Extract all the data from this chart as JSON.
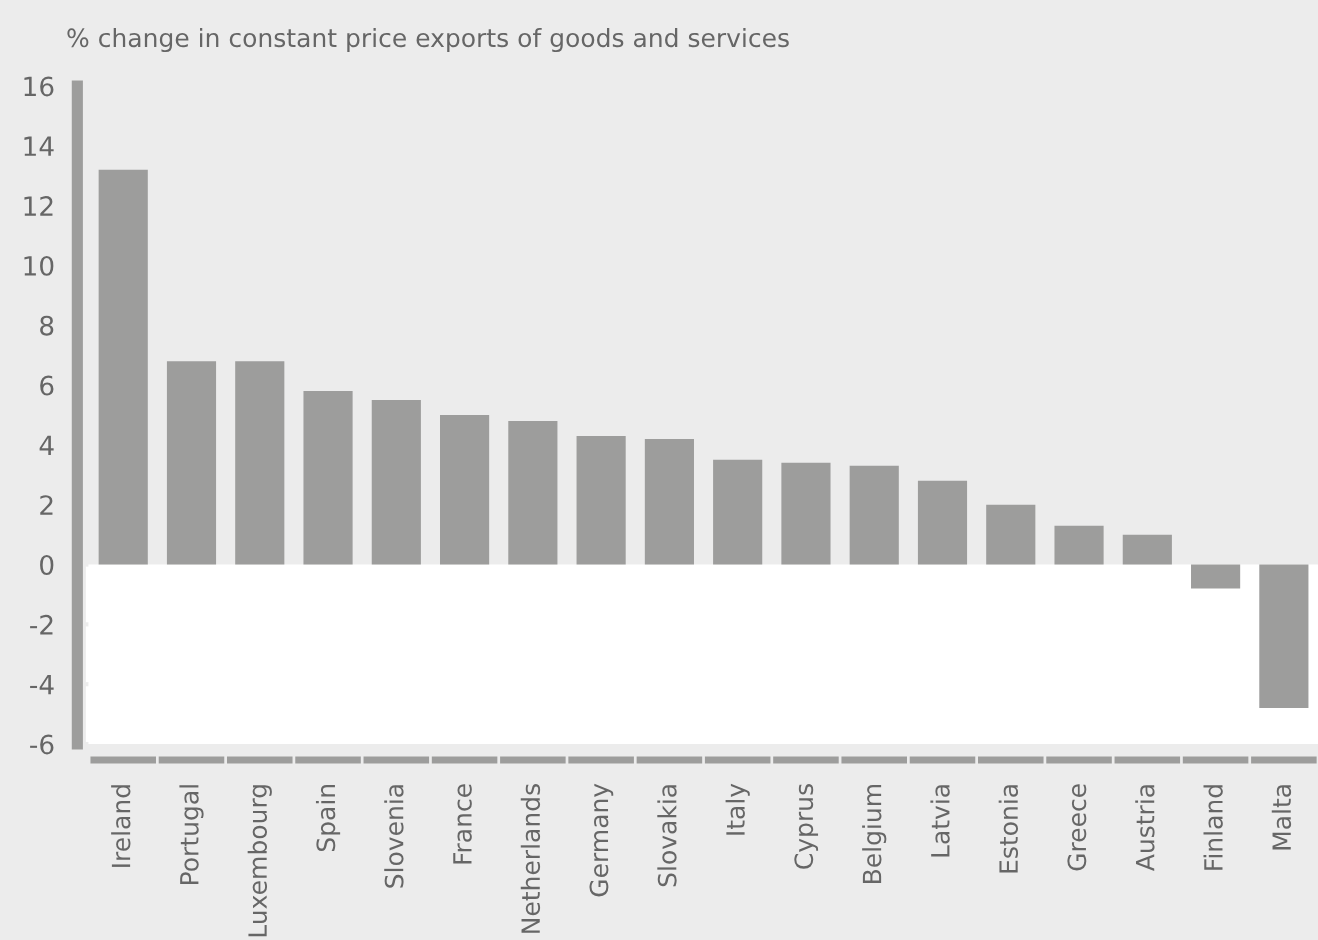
{
  "chart_data": {
    "type": "bar",
    "title": "% change in constant price exports of goods and services",
    "categories": [
      "Ireland",
      "Portugal",
      "Luxembourg",
      "Spain",
      "Slovenia",
      "France",
      "Netherlands",
      "Germany",
      "Slovakia",
      "Italy",
      "Cyprus",
      "Belgium",
      "Latvia",
      "Estonia",
      "Greece",
      "Austria",
      "Finland",
      "Malta"
    ],
    "values": [
      13.2,
      6.8,
      6.8,
      5.8,
      5.5,
      5.0,
      4.8,
      4.3,
      4.2,
      3.5,
      3.4,
      3.3,
      2.8,
      2.0,
      1.3,
      1.0,
      -0.8,
      -4.8
    ],
    "color": "#9d9d9c",
    "ylim": [
      -6,
      16
    ],
    "yticks": [
      -6,
      -4,
      -2,
      0,
      2,
      4,
      6,
      8,
      10,
      12,
      14,
      16
    ],
    "bands": [
      {
        "axis": "y",
        "from": -6,
        "to": 0,
        "color": "#ffffff"
      }
    ],
    "grid": false,
    "legend": false
  }
}
